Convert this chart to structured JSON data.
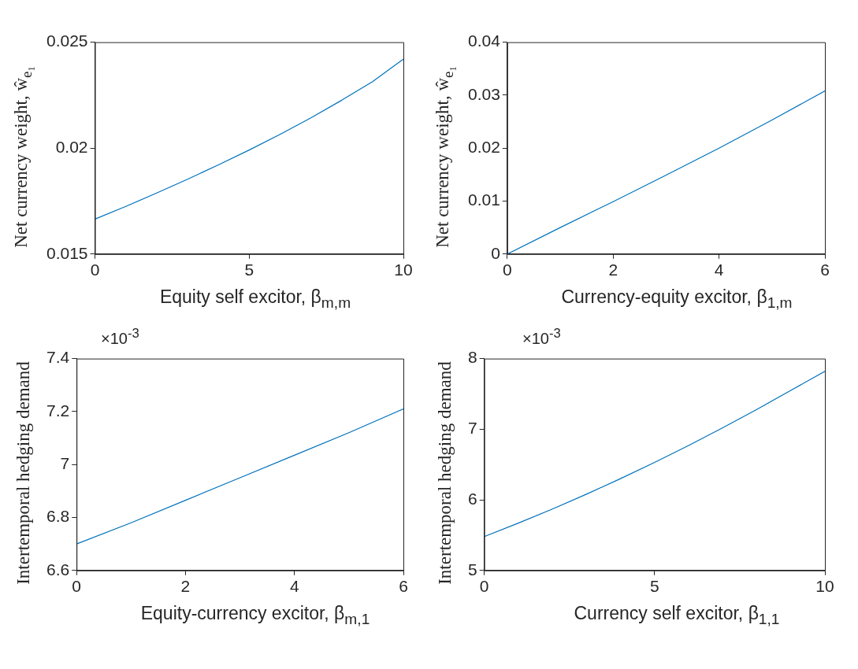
{
  "chart_data": [
    {
      "type": "line",
      "xlabel": "Equity self excitor,  β$_{m,m}$",
      "ylabel": "Net currency weight, ŵ$_{e₁}$",
      "x": [
        0,
        1,
        2,
        3,
        4,
        5,
        6,
        7,
        8,
        9,
        10
      ],
      "series": [
        {
          "color": "#0072bd",
          "values": [
            0.01665,
            0.01725,
            0.01788,
            0.01853,
            0.01921,
            0.01991,
            0.02065,
            0.02143,
            0.02226,
            0.02314,
            0.0242
          ]
        }
      ],
      "xlim": [
        0,
        10
      ],
      "xticks": [
        0,
        5,
        10
      ],
      "ylim": [
        0.015,
        0.025
      ],
      "yticks": [
        0.015,
        0.02,
        0.025
      ]
    },
    {
      "type": "line",
      "xlabel": "Currency-equity excitor,  β$_{1,m}$",
      "ylabel": "Net currency weight, ŵ$_{e₁}$",
      "x": [
        0,
        1,
        2,
        3,
        4,
        5,
        6
      ],
      "series": [
        {
          "color": "#0072bd",
          "values": [
            0,
            0.005,
            0.0099,
            0.0149,
            0.02,
            0.0253,
            0.0308
          ]
        }
      ],
      "xlim": [
        0,
        6
      ],
      "xticks": [
        0,
        2,
        4,
        6
      ],
      "ylim": [
        0,
        0.04
      ],
      "yticks": [
        0,
        0.01,
        0.02,
        0.03,
        0.04
      ]
    },
    {
      "type": "line",
      "xlabel": "Equity-currency excitor,  β$_{m,1}$",
      "ylabel": "Intertemporal hedging demand",
      "annotations": [
        "×10$^{-3}$"
      ],
      "x": [
        0,
        1,
        2,
        3,
        4,
        5,
        6
      ],
      "series": [
        {
          "color": "#0072bd",
          "values": [
            6.7,
            6.78,
            6.865,
            6.95,
            7.035,
            7.12,
            7.21
          ]
        }
      ],
      "xlim": [
        0,
        6
      ],
      "xticks": [
        0,
        2,
        4,
        6
      ],
      "ylim": [
        6.6,
        7.4
      ],
      "yticks": [
        6.6,
        6.8,
        7,
        7.2,
        7.4
      ]
    },
    {
      "type": "line",
      "xlabel": "Currency self excitor,  β$_{1,1}$",
      "ylabel": "Intertemporal hedging demand",
      "annotations": [
        "×10$^{-3}$"
      ],
      "x": [
        0,
        1,
        2,
        3,
        4,
        5,
        6,
        7,
        8,
        9,
        10
      ],
      "series": [
        {
          "color": "#0072bd",
          "values": [
            5.48,
            5.67,
            5.87,
            6.08,
            6.3,
            6.53,
            6.77,
            7.02,
            7.28,
            7.55,
            7.82
          ]
        }
      ],
      "xlim": [
        0,
        10
      ],
      "xticks": [
        0,
        5,
        10
      ],
      "ylim": [
        5,
        8
      ],
      "yticks": [
        5,
        6,
        7,
        8
      ]
    }
  ]
}
